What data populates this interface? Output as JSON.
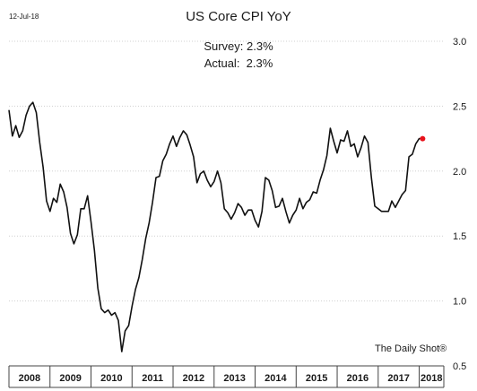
{
  "header": {
    "date": "12-Jul-18",
    "title": "US Core CPI YoY",
    "survey": "Survey: 2.3%",
    "actual": "Actual:  2.3%"
  },
  "footer": {
    "source": "The Daily Shot®"
  },
  "colors": {
    "line": "#111111",
    "marker": "#e8121b",
    "grid": "#d0d0d0",
    "axis": "#444444"
  },
  "chart_data": {
    "type": "line",
    "ylim": [
      0.5,
      3.0
    ],
    "yticks": [
      "3.0",
      "2.5",
      "2.0",
      "1.5",
      "1.0",
      "0.5"
    ],
    "ytick_values": [
      3.0,
      2.5,
      2.0,
      1.5,
      1.0,
      0.5
    ],
    "grid": true,
    "x_start": 2008.0,
    "x_end": 2018.6,
    "xtick_labels": [
      "2008",
      "2009",
      "2010",
      "2011",
      "2012",
      "2013",
      "2014",
      "2015",
      "2016",
      "2017",
      "2018"
    ],
    "series": [
      {
        "start": "2008-01",
        "values": [
          2.47,
          2.27,
          2.35,
          2.26,
          2.31,
          2.43,
          2.5,
          2.53,
          2.45,
          2.22,
          2.03,
          1.77,
          1.69,
          1.79,
          1.76,
          1.9,
          1.84,
          1.72,
          1.52,
          1.44,
          1.51,
          1.71,
          1.71,
          1.81,
          1.61,
          1.39,
          1.1,
          0.94,
          0.91,
          0.93,
          0.89,
          0.91,
          0.85,
          0.61,
          0.77,
          0.81,
          0.96,
          1.09,
          1.18,
          1.32,
          1.48,
          1.6,
          1.76,
          1.95,
          1.96,
          2.08,
          2.13,
          2.21,
          2.27,
          2.19,
          2.26,
          2.31,
          2.28,
          2.2,
          2.11,
          1.91,
          1.98,
          2.0,
          1.93,
          1.88,
          1.92,
          2.0,
          1.91,
          1.71,
          1.68,
          1.63,
          1.68,
          1.75,
          1.72,
          1.66,
          1.7,
          1.7,
          1.62,
          1.57,
          1.69,
          1.95,
          1.93,
          1.85,
          1.72,
          1.73,
          1.79,
          1.69,
          1.6,
          1.66,
          1.7,
          1.79,
          1.71,
          1.76,
          1.78,
          1.84,
          1.83,
          1.93,
          2.01,
          2.12,
          2.33,
          2.23,
          2.14,
          2.24,
          2.23,
          2.31,
          2.19,
          2.21,
          2.11,
          2.18,
          2.27,
          2.22,
          1.95,
          1.73,
          1.71,
          1.69,
          1.69,
          1.69,
          1.77,
          1.72,
          1.77,
          1.82,
          1.85,
          2.11,
          2.13,
          2.21,
          2.25,
          2.25
        ]
      }
    ],
    "last_point_marker": true
  }
}
